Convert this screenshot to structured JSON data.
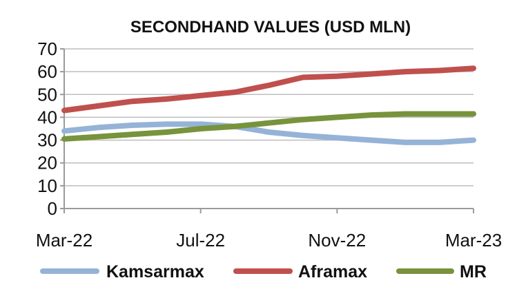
{
  "chart_data": {
    "type": "line",
    "title": "SECONDHAND VALUES (USD MLN)",
    "xlabel": "",
    "ylabel": "",
    "ylim": [
      0,
      70
    ],
    "yticks": [
      0,
      10,
      20,
      30,
      40,
      50,
      60,
      70
    ],
    "x_tick_labels": [
      "Mar-22",
      "Jul-22",
      "Nov-22",
      "Mar-23"
    ],
    "x": [
      "Mar-22",
      "Apr-22",
      "May-22",
      "Jun-22",
      "Jul-22",
      "Aug-22",
      "Sep-22",
      "Oct-22",
      "Nov-22",
      "Dec-22",
      "Jan-23",
      "Feb-23",
      "Mar-23"
    ],
    "grid": true,
    "legend_position": "bottom",
    "series": [
      {
        "name": "Kamsarmax",
        "color": "#95b3d7",
        "values": [
          34,
          35.5,
          36.5,
          37,
          37,
          36,
          33.5,
          32,
          31,
          30,
          29,
          29,
          30
        ]
      },
      {
        "name": "Aframax",
        "color": "#c0504d",
        "values": [
          43,
          45,
          47,
          48,
          49.5,
          51,
          54,
          57.5,
          58,
          59,
          60,
          60.5,
          61.5
        ]
      },
      {
        "name": "MR",
        "color": "#77933c",
        "values": [
          30.5,
          31.5,
          32.5,
          33.5,
          35,
          36,
          37.5,
          39,
          40,
          41,
          41.5,
          41.5,
          41.5
        ]
      }
    ]
  }
}
